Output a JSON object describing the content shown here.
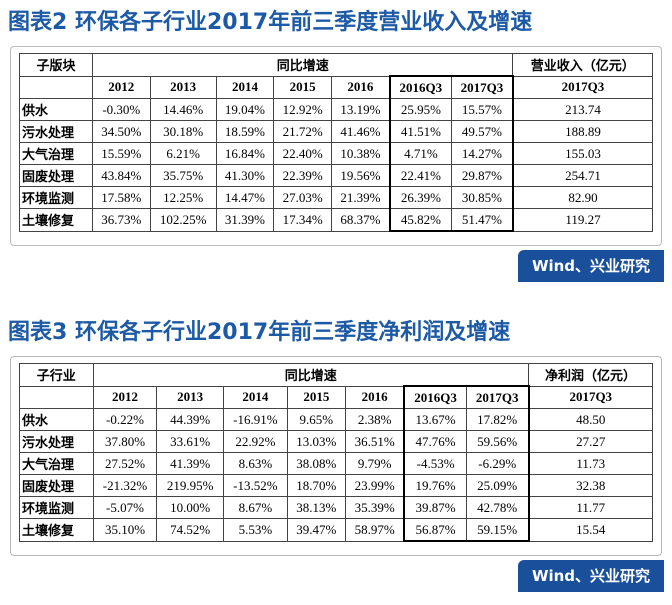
{
  "figures": [
    {
      "title": "图表2 环保各子行业2017年前三季度营业收入及增速",
      "table": {
        "header": [
          "子版块",
          "同比增速",
          "营业收入（亿元）"
        ],
        "subheader": [
          "2012",
          "2013",
          "2014",
          "2015",
          "2016",
          "2016Q3",
          "2017Q3",
          "2017Q3"
        ],
        "rows": [
          [
            "供水",
            "-0.30%",
            "14.46%",
            "19.04%",
            "12.92%",
            "13.19%",
            "25.95%",
            "15.57%",
            "213.74"
          ],
          [
            "污水处理",
            "34.50%",
            "30.18%",
            "18.59%",
            "21.72%",
            "41.46%",
            "41.51%",
            "49.57%",
            "188.89"
          ],
          [
            "大气治理",
            "15.59%",
            "6.21%",
            "16.84%",
            "22.40%",
            "10.38%",
            "4.71%",
            "14.27%",
            "155.03"
          ],
          [
            "固废处理",
            "43.84%",
            "35.75%",
            "41.30%",
            "22.39%",
            "19.56%",
            "22.41%",
            "29.87%",
            "254.71"
          ],
          [
            "环境监测",
            "17.58%",
            "12.25%",
            "14.47%",
            "27.03%",
            "21.39%",
            "26.39%",
            "30.85%",
            "82.90"
          ],
          [
            "土壤修复",
            "36.73%",
            "102.25%",
            "31.39%",
            "17.34%",
            "68.37%",
            "45.82%",
            "51.47%",
            "119.27"
          ]
        ]
      },
      "source": "Wind、兴业研究"
    },
    {
      "title": "图表3 环保各子行业2017年前三季度净利润及增速",
      "table": {
        "header": [
          "子行业",
          "同比增速",
          "净利润（亿元）"
        ],
        "subheader": [
          "2012",
          "2013",
          "2014",
          "2015",
          "2016",
          "2016Q3",
          "2017Q3",
          "2017Q3"
        ],
        "rows": [
          [
            "供水",
            "-0.22%",
            "44.39%",
            "-16.91%",
            "9.65%",
            "2.38%",
            "13.67%",
            "17.82%",
            "48.50"
          ],
          [
            "污水处理",
            "37.80%",
            "33.61%",
            "22.92%",
            "13.03%",
            "36.51%",
            "47.76%",
            "59.56%",
            "27.27"
          ],
          [
            "大气治理",
            "27.52%",
            "41.39%",
            "8.63%",
            "38.08%",
            "9.79%",
            "-4.53%",
            "-6.29%",
            "11.73"
          ],
          [
            "固废处理",
            "-21.32%",
            "219.95%",
            "-13.52%",
            "18.70%",
            "23.99%",
            "19.76%",
            "25.09%",
            "32.38"
          ],
          [
            "环境监测",
            "-5.07%",
            "10.00%",
            "8.67%",
            "38.13%",
            "35.39%",
            "39.87%",
            "42.78%",
            "11.77"
          ],
          [
            "土壤修复",
            "35.10%",
            "74.52%",
            "5.53%",
            "39.47%",
            "58.97%",
            "56.87%",
            "59.15%",
            "15.54"
          ]
        ]
      },
      "source": "Wind、兴业研究"
    }
  ]
}
